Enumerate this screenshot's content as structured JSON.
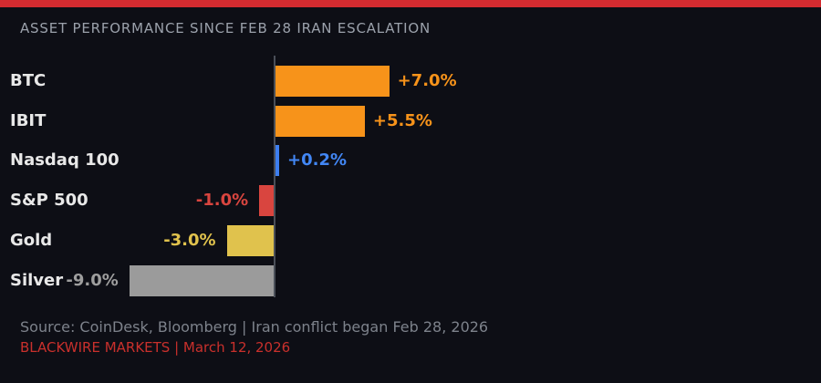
{
  "title": "ASSET PERFORMANCE SINCE FEB 28 IRAN ESCALATION",
  "footer": {
    "source_line": "Source: CoinDesk, Bloomberg | Iran conflict began Feb 28, 2026",
    "brand_line": "BLACKWIRE MARKETS | March 12, 2026"
  },
  "colors": {
    "background": "#0d0e15",
    "top_strip": "#d32b30",
    "title_text": "#9ba1ab",
    "axis_line": "#4a4f58",
    "asset_label_text": "#e8e8e8",
    "footer_source_text": "#7d828b",
    "footer_brand_text": "#c9302c"
  },
  "chart_data": {
    "type": "bar",
    "orientation": "horizontal",
    "title": "ASSET PERFORMANCE SINCE FEB 28 IRAN ESCALATION",
    "xlabel": "",
    "ylabel": "",
    "categories": [
      "BTC",
      "IBIT",
      "Nasdaq 100",
      "S&P 500",
      "Gold",
      "Silver"
    ],
    "values": [
      7.0,
      5.5,
      0.2,
      -1.0,
      -3.0,
      -9.0
    ],
    "value_labels": [
      "+7.0%",
      "+5.5%",
      "+0.2%",
      "-1.0%",
      "-3.0%",
      "-9.0%"
    ],
    "bar_colors": [
      "#f7931a",
      "#f7931a",
      "#3d7ef0",
      "#d9453f",
      "#e0c24d",
      "#9b9b9b"
    ],
    "label_colors": [
      "#f7931a",
      "#f7931a",
      "#4287f5",
      "#d9453f",
      "#e0c24d",
      "#9e9e9e"
    ],
    "unit": "%",
    "xlim": [
      -17,
      33.6
    ],
    "grid": false,
    "legend": false,
    "zero_baseline": true
  }
}
